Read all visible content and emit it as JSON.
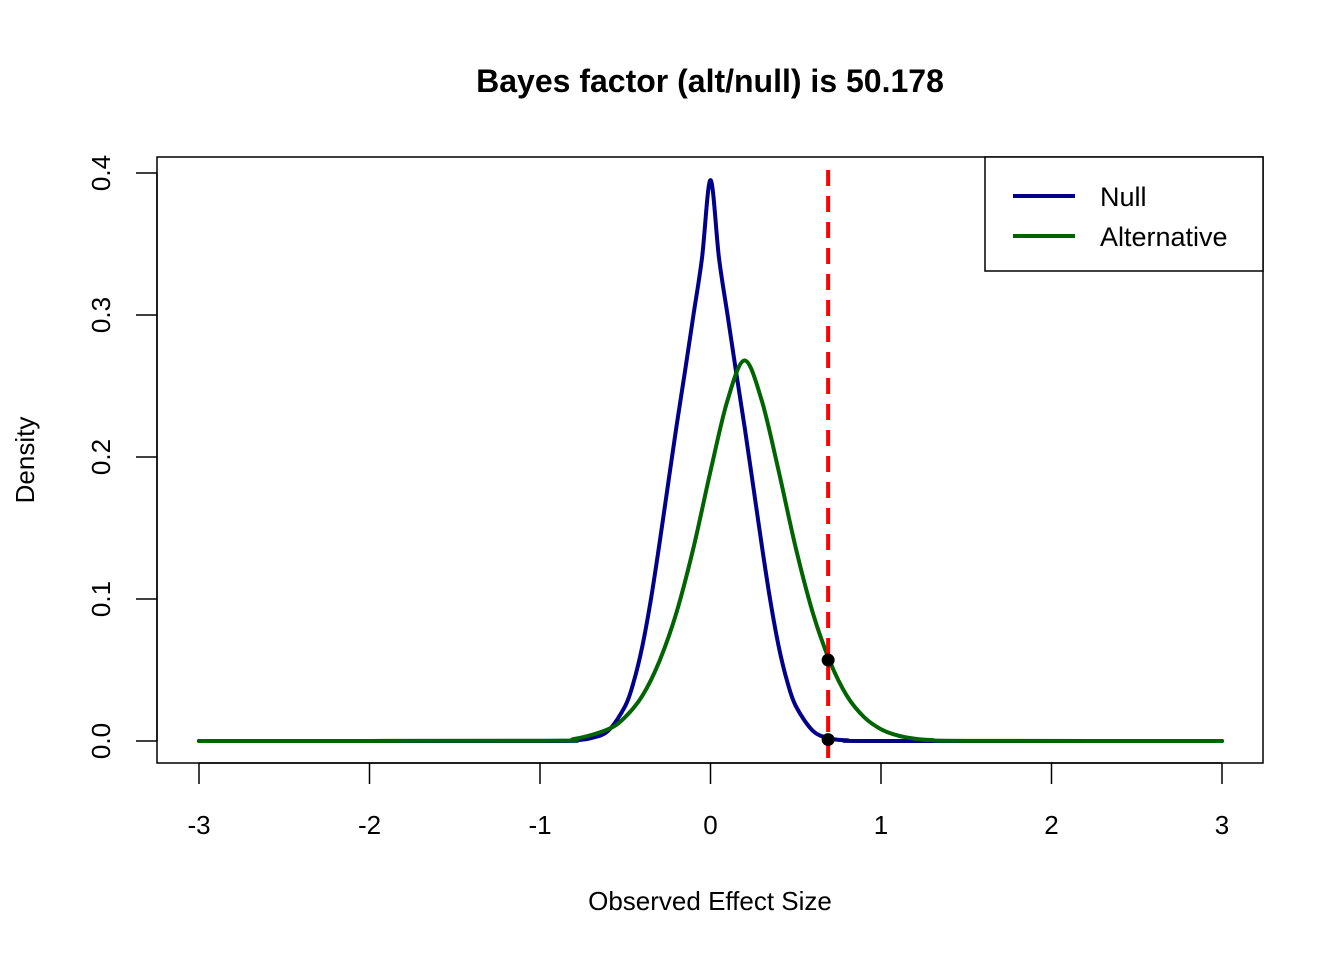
{
  "chart_data": {
    "type": "line",
    "title": "Bayes factor (alt/null) is  50.178",
    "xlabel": "Observed Effect Size",
    "ylabel": "Density",
    "xlim": [
      -3.0,
      3.0
    ],
    "ylim": [
      0.0,
      0.4
    ],
    "x_ticks": [
      -3,
      -2,
      -1,
      0,
      1,
      2,
      3
    ],
    "x_tick_labels": [
      "-3",
      "-2",
      "-1",
      "0",
      "1",
      "2",
      "3"
    ],
    "y_ticks": [
      0.0,
      0.1,
      0.2,
      0.3,
      0.4
    ],
    "y_tick_labels": [
      "0.0",
      "0.1",
      "0.2",
      "0.3",
      "0.4"
    ],
    "grid": false,
    "legend_position": "top-right",
    "series": [
      {
        "name": "Null",
        "color": "#00008B",
        "x": [
          -3.0,
          -1.0,
          -0.8,
          -0.7,
          -0.6,
          -0.5,
          -0.45,
          -0.4,
          -0.35,
          -0.3,
          -0.25,
          -0.2,
          -0.15,
          -0.1,
          -0.05,
          0.0,
          0.05,
          0.1,
          0.15,
          0.2,
          0.25,
          0.3,
          0.35,
          0.4,
          0.45,
          0.5,
          0.6,
          0.7,
          0.8,
          1.0,
          3.0
        ],
        "y": [
          0.0,
          0.0,
          0.0005,
          0.0021,
          0.0072,
          0.0247,
          0.0419,
          0.0666,
          0.0994,
          0.1384,
          0.1799,
          0.2212,
          0.26,
          0.3,
          0.34,
          0.395,
          0.34,
          0.3,
          0.26,
          0.2212,
          0.1799,
          0.1384,
          0.0994,
          0.0666,
          0.0419,
          0.0247,
          0.0072,
          0.0018,
          0.0005,
          0.0,
          0.0
        ]
      },
      {
        "name": "Alternative",
        "color": "#006400",
        "x": [
          -3.0,
          -1.0,
          -0.8,
          -0.6,
          -0.5,
          -0.4,
          -0.3,
          -0.2,
          -0.1,
          0.0,
          0.1,
          0.2,
          0.3,
          0.4,
          0.5,
          0.6,
          0.7,
          0.8,
          0.9,
          1.0,
          1.1,
          1.2,
          1.3,
          1.5,
          3.0
        ],
        "y": [
          0.0,
          0.0002,
          0.0014,
          0.0083,
          0.0169,
          0.0318,
          0.0561,
          0.0903,
          0.136,
          0.19,
          0.24,
          0.268,
          0.24,
          0.19,
          0.136,
          0.0903,
          0.0561,
          0.0318,
          0.0169,
          0.0083,
          0.0038,
          0.0016,
          0.0006,
          0.0001,
          0.0
        ]
      }
    ],
    "reference_line": {
      "x": 0.69,
      "color": "#FF0000",
      "style": "dashed"
    },
    "points": [
      {
        "x": 0.69,
        "y": 0.057,
        "color": "#000000"
      },
      {
        "x": 0.69,
        "y": 0.001,
        "color": "#000000"
      }
    ]
  }
}
